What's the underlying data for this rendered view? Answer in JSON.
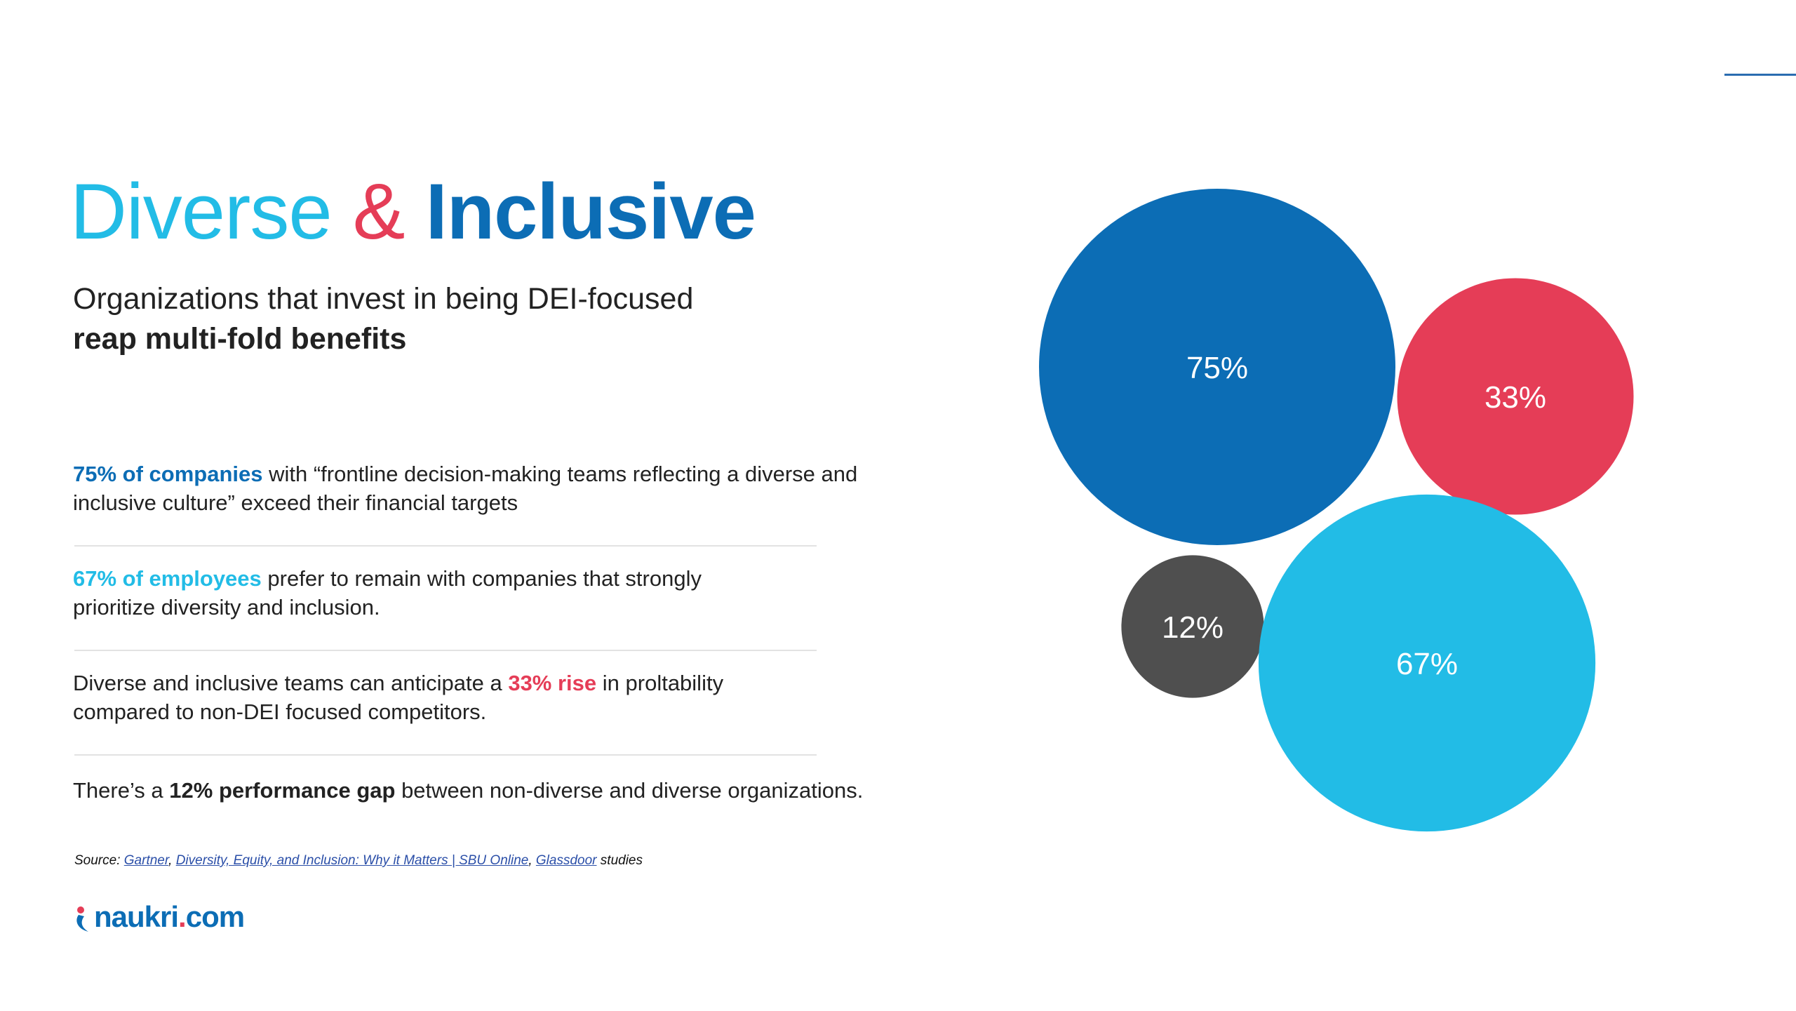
{
  "title": {
    "part1": "Diverse",
    "part2": "&",
    "part3": "Inclusive"
  },
  "subtitle": {
    "line1": "Organizations that invest in being DEI-focused",
    "line2": "reap multi-fold benefits"
  },
  "stats": [
    {
      "highlight": "75% of companies",
      "text": " with “frontline decision-making teams reflecting a diverse and inclusive culture” exceed their financial targets"
    },
    {
      "highlight": "67% of employees",
      "text": " prefer to remain with companies that strongly prioritize diversity and inclusion."
    },
    {
      "before": "Diverse and inclusive teams can anticipate a ",
      "highlight": "33% rise",
      "after": " in proltability compared to non-DEI focused competitors."
    },
    {
      "before": "There’s a ",
      "highlight": "12% performance gap",
      "after": " between non-diverse and diverse organizations."
    }
  ],
  "source": {
    "label": "Source:",
    "link1": "Gartner",
    "sep1": ",",
    "link2": "Diversity, Equity, and Inclusion: Why it Matters | SBU Online",
    "sep2": ",",
    "link3": "Glassdoor",
    "suffix": "studies"
  },
  "logo": {
    "name": "naukri",
    "dot": ".",
    "tld": "com"
  },
  "chart_data": {
    "type": "bubble",
    "title": "",
    "series": [
      {
        "label": "75%",
        "value": 75,
        "color": "#0c6db5"
      },
      {
        "label": "33%",
        "value": 33,
        "color": "#e53d57"
      },
      {
        "label": "12%",
        "value": 12,
        "color": "#4f4f4f"
      },
      {
        "label": "67%",
        "value": 67,
        "color": "#22bce6"
      }
    ]
  }
}
